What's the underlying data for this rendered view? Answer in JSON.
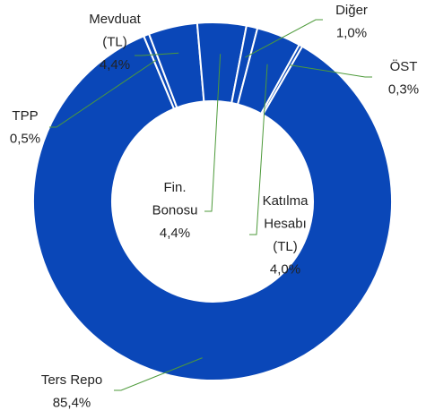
{
  "chart_data": {
    "type": "donut",
    "categories": [
      "Ters Repo",
      "TPP",
      "Mevduat (TL)",
      "Fin. Bonosu",
      "Diğer",
      "Katılma Hesabı (TL)",
      "ÖST"
    ],
    "values": [
      85.4,
      0.5,
      4.4,
      4.4,
      1.0,
      4.0,
      0.3
    ],
    "value_labels": [
      "85,4%",
      "0,5%",
      "4,4%",
      "4,4%",
      "1,0%",
      "4,0%",
      "0,3%"
    ],
    "color": "#0a47b8"
  }
}
